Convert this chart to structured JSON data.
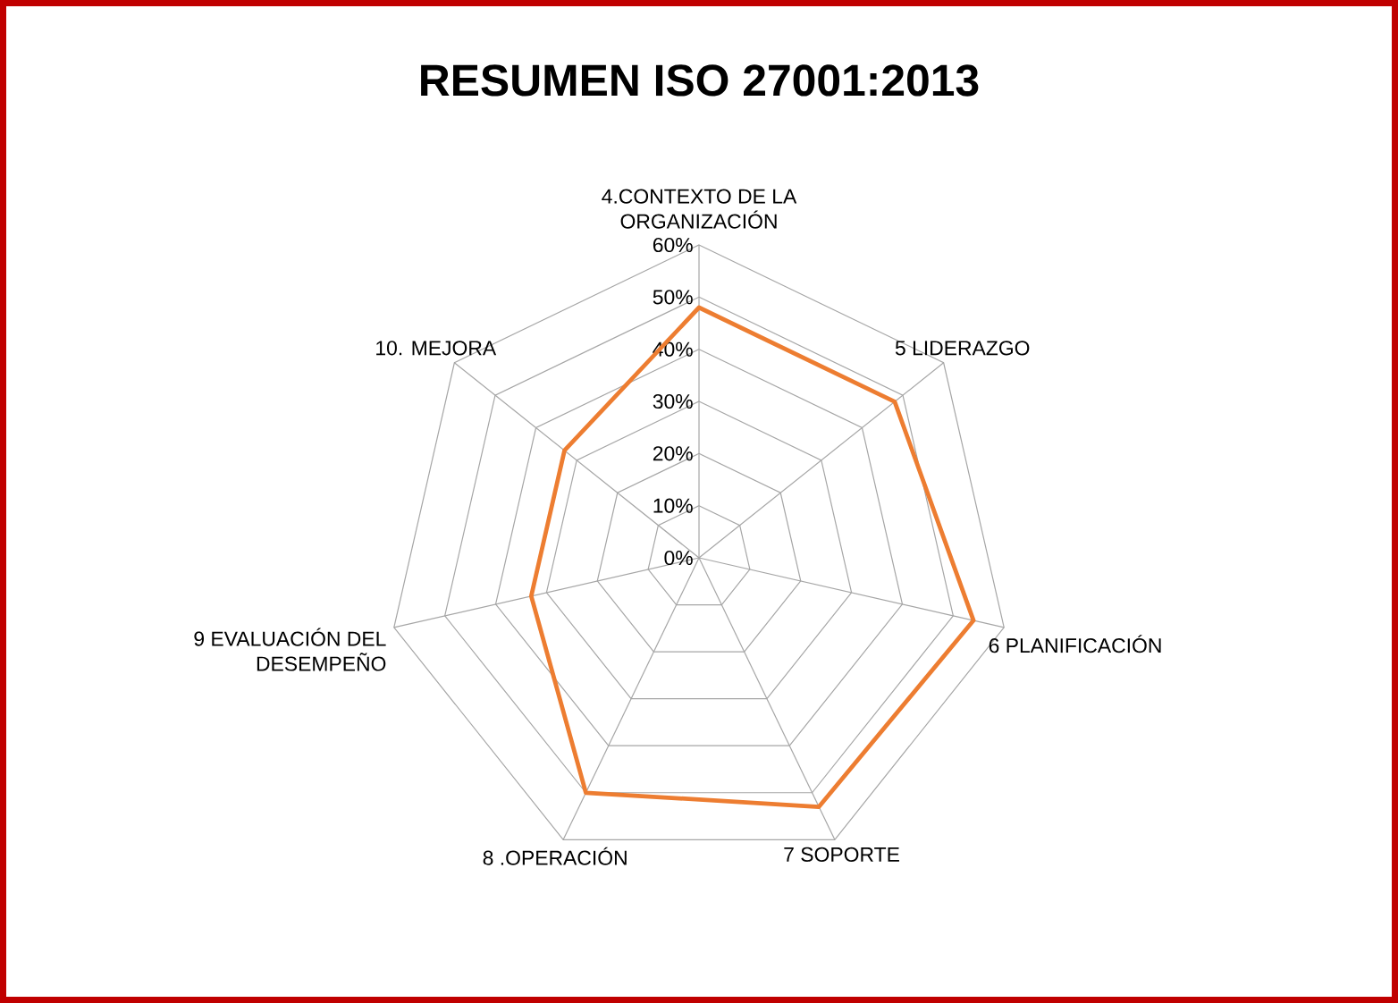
{
  "chart_data": {
    "type": "radar",
    "title": "RESUMEN ISO 27001:2013",
    "categories": [
      "4.CONTEXTO DE LA ORGANIZACIÓN",
      "5 LIDERAZGO",
      "6 PLANIFICACIÓN",
      "7 SOPORTE",
      "8 .OPERACIÓN",
      "9 EVALUACIÓN DEL DESEMPEÑO",
      "10. MEJORA"
    ],
    "series": [
      {
        "color": "#ed7d31",
        "values": [
          48,
          48,
          54,
          53,
          50,
          33,
          33
        ]
      }
    ],
    "ylim": [
      0,
      60
    ],
    "yticks": [
      {
        "value": 0,
        "label": "0%"
      },
      {
        "value": 10,
        "label": "10%"
      },
      {
        "value": 20,
        "label": "20%"
      },
      {
        "value": 30,
        "label": "30%"
      },
      {
        "value": 40,
        "label": "40%"
      },
      {
        "value": 50,
        "label": "50%"
      },
      {
        "value": 60,
        "label": "60%"
      }
    ],
    "grid": true
  }
}
